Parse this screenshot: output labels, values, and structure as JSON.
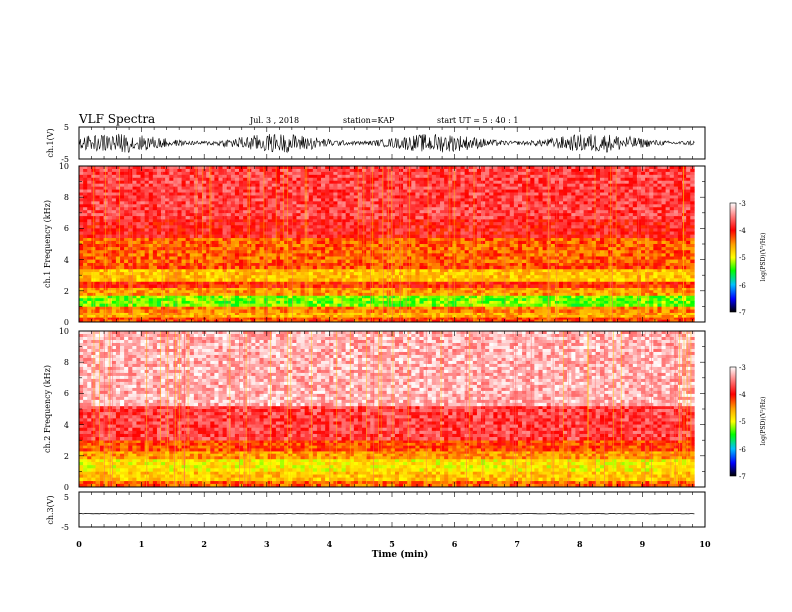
{
  "header": {
    "title": "VLF Spectra",
    "date": "Jul. 3 , 2018",
    "station": "station=KAP",
    "start": "start UT = 5 : 40 : 1"
  },
  "chart_data": [
    {
      "type": "line",
      "name": "ch1-waveform",
      "ylabel": "ch.1(V)",
      "ylim": [
        -5,
        5
      ],
      "xlim": [
        0,
        10
      ],
      "yticks": [
        "5",
        "-5"
      ],
      "x_end": 9.83,
      "amplitude_range": [
        -3,
        3
      ]
    },
    {
      "type": "heatmap",
      "name": "ch1-spectrogram",
      "ylabel": "ch.1 Frequency (kHz)",
      "ylim": [
        0,
        10
      ],
      "xlim": [
        0,
        10
      ],
      "yticks": [
        "0",
        "2",
        "4",
        "6",
        "8",
        "10"
      ],
      "x_end": 9.83,
      "bands": [
        {
          "from": 0.0,
          "to": 0.3,
          "level": -4.2
        },
        {
          "from": 0.3,
          "to": 0.6,
          "level": -4.6
        },
        {
          "from": 0.6,
          "to": 1.0,
          "level": -4.4
        },
        {
          "from": 1.0,
          "to": 1.7,
          "level": -5.3
        },
        {
          "from": 1.7,
          "to": 2.2,
          "level": -4.5
        },
        {
          "from": 2.2,
          "to": 2.6,
          "level": -4.1
        },
        {
          "from": 2.6,
          "to": 3.4,
          "level": -4.7
        },
        {
          "from": 3.4,
          "to": 3.8,
          "level": -4.2
        },
        {
          "from": 3.8,
          "to": 5.4,
          "level": -4.3
        },
        {
          "from": 5.4,
          "to": 6.6,
          "level": -3.9
        },
        {
          "from": 6.6,
          "to": 10.0,
          "level": -3.75
        }
      ],
      "colorbar": {
        "label": "log(PSD)(V²/Hz)",
        "range": [
          -7,
          -3
        ],
        "ticks": [
          "-3",
          "-4",
          "-5",
          "-6",
          "-7"
        ]
      }
    },
    {
      "type": "heatmap",
      "name": "ch2-spectrogram",
      "ylabel": "ch.2 Frequency (kHz)",
      "ylim": [
        0,
        10
      ],
      "xlim": [
        0,
        10
      ],
      "yticks": [
        "0",
        "2",
        "4",
        "6",
        "8",
        "10"
      ],
      "x_end": 9.83,
      "bands": [
        {
          "from": 0.0,
          "to": 0.4,
          "level": -4.3
        },
        {
          "from": 0.4,
          "to": 1.0,
          "level": -4.7
        },
        {
          "from": 1.0,
          "to": 1.8,
          "level": -4.9
        },
        {
          "from": 1.8,
          "to": 2.3,
          "level": -4.5
        },
        {
          "from": 2.3,
          "to": 3.0,
          "level": -4.2
        },
        {
          "from": 3.0,
          "to": 5.2,
          "level": -3.75
        },
        {
          "from": 5.2,
          "to": 10.0,
          "level": -3.3
        }
      ],
      "colorbar": {
        "label": "log(PSD)(V²/Hz)",
        "range": [
          -7,
          -3
        ],
        "ticks": [
          "-3",
          "-4",
          "-5",
          "-6",
          "-7"
        ]
      }
    },
    {
      "type": "line",
      "name": "ch3-waveform",
      "ylabel": "ch.3(V)",
      "ylim": [
        -5,
        5
      ],
      "xlim": [
        0,
        10
      ],
      "yticks": [
        "5",
        "0",
        "-5"
      ],
      "x_end": 9.83,
      "value": -1.2
    }
  ],
  "xaxis": {
    "label": "Time (min)",
    "ticks": [
      "0",
      "1",
      "2",
      "3",
      "4",
      "5",
      "6",
      "7",
      "8",
      "9",
      "10"
    ]
  },
  "colors": {
    "axis": "#000000",
    "trace": "#000000"
  }
}
